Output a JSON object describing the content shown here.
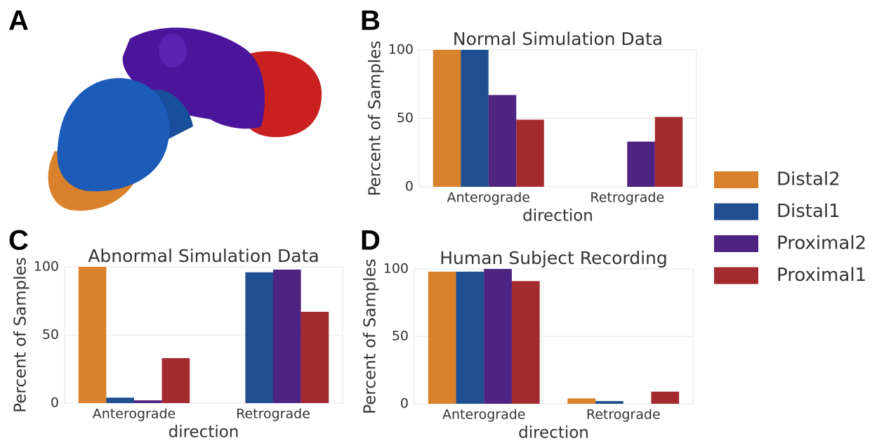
{
  "image_panel": {
    "label": "A"
  },
  "chart_data": [
    {
      "type": "bar",
      "panel": "B",
      "title": "Normal Simulation Data",
      "xlabel": "direction",
      "ylabel": "Percent of Samples",
      "categories": [
        "Anterograde",
        "Retrograde"
      ],
      "series": [
        {
          "name": "Distal2",
          "color": "#d9822b",
          "values": [
            100,
            0
          ]
        },
        {
          "name": "Distal1",
          "color": "#1f4e91",
          "values": [
            100,
            0
          ]
        },
        {
          "name": "Proximal2",
          "color": "#4e2382",
          "values": [
            67,
            33
          ]
        },
        {
          "name": "Proximal1",
          "color": "#a32a2e",
          "values": [
            49,
            51
          ]
        }
      ],
      "ylim": [
        0,
        100
      ],
      "yticks": [
        0,
        50,
        100
      ],
      "grid": true,
      "legend": "right"
    },
    {
      "type": "bar",
      "panel": "C",
      "title": "Abnormal Simulation Data",
      "xlabel": "direction",
      "ylabel": "Percent of Samples",
      "categories": [
        "Anterograde",
        "Retrograde"
      ],
      "series": [
        {
          "name": "Distal2",
          "color": "#d9822b",
          "values": [
            100,
            0
          ]
        },
        {
          "name": "Distal1",
          "color": "#1f4e91",
          "values": [
            4,
            96
          ]
        },
        {
          "name": "Proximal2",
          "color": "#4e2382",
          "values": [
            2,
            98
          ]
        },
        {
          "name": "Proximal1",
          "color": "#a32a2e",
          "values": [
            33,
            67
          ]
        }
      ],
      "ylim": [
        0,
        100
      ],
      "yticks": [
        0,
        50,
        100
      ],
      "grid": true
    },
    {
      "type": "bar",
      "panel": "D",
      "title": "Human Subject Recording",
      "xlabel": "direction",
      "ylabel": "Percent of Samples",
      "categories": [
        "Anterograde",
        "Retrograde"
      ],
      "series": [
        {
          "name": "Distal2",
          "color": "#d9822b",
          "values": [
            98,
            4
          ]
        },
        {
          "name": "Distal1",
          "color": "#1f4e91",
          "values": [
            98,
            2
          ]
        },
        {
          "name": "Proximal2",
          "color": "#4e2382",
          "values": [
            100,
            0
          ]
        },
        {
          "name": "Proximal1",
          "color": "#a32a2e",
          "values": [
            91,
            9
          ]
        }
      ],
      "ylim": [
        0,
        100
      ],
      "yticks": [
        0,
        50,
        100
      ],
      "grid": true
    }
  ]
}
